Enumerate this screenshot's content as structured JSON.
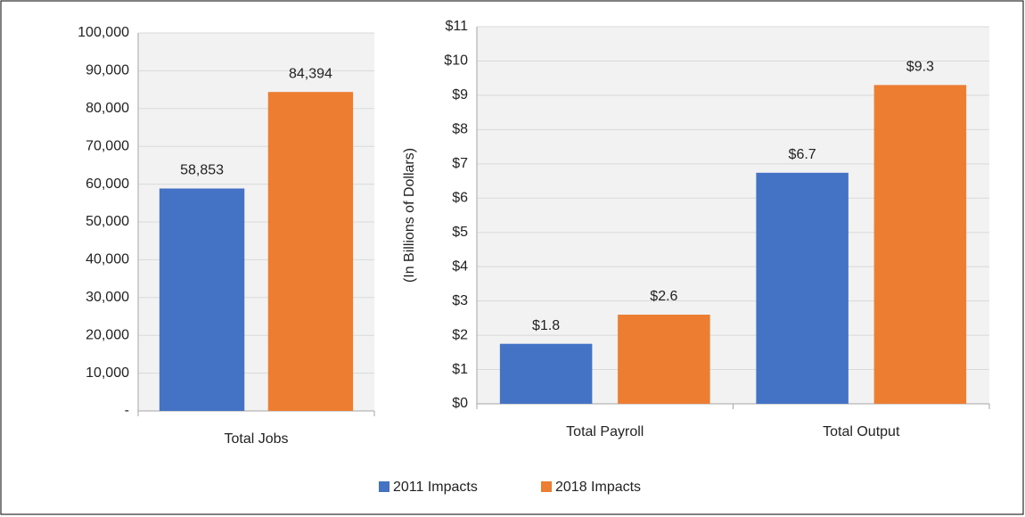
{
  "chart_data": [
    {
      "type": "bar",
      "categories": [
        "Total Jobs"
      ],
      "series": [
        {
          "values": [
            58853
          ],
          "value_labels": [
            "58,853"
          ]
        },
        {
          "values": [
            84394
          ],
          "value_labels": [
            "84,394"
          ]
        }
      ],
      "ylim": [
        0,
        100000
      ],
      "yticks": [
        {
          "value": 0,
          "label": "-"
        },
        {
          "value": 10000,
          "label": "10,000"
        },
        {
          "value": 20000,
          "label": "20,000"
        },
        {
          "value": 30000,
          "label": "30,000"
        },
        {
          "value": 40000,
          "label": "40,000"
        },
        {
          "value": 50000,
          "label": "50,000"
        },
        {
          "value": 60000,
          "label": "60,000"
        },
        {
          "value": 70000,
          "label": "70,000"
        },
        {
          "value": 80000,
          "label": "80,000"
        },
        {
          "value": 90000,
          "label": "90,000"
        },
        {
          "value": 100000,
          "label": "100,000"
        }
      ],
      "grid": true
    },
    {
      "type": "bar",
      "y_label": "(In Billions of Dollars)",
      "categories": [
        "Total Payroll",
        "Total Output"
      ],
      "series": [
        {
          "values": [
            1.75,
            6.74
          ],
          "value_labels": [
            "$1.8",
            "$6.7"
          ]
        },
        {
          "values": [
            2.6,
            9.3
          ],
          "value_labels": [
            "$2.6",
            "$9.3"
          ]
        }
      ],
      "ylim": [
        0,
        11
      ],
      "yticks": [
        {
          "value": 0,
          "label": "$0"
        },
        {
          "value": 1,
          "label": "$1"
        },
        {
          "value": 2,
          "label": "$2"
        },
        {
          "value": 3,
          "label": "$3"
        },
        {
          "value": 4,
          "label": "$4"
        },
        {
          "value": 5,
          "label": "$5"
        },
        {
          "value": 6,
          "label": "$6"
        },
        {
          "value": 7,
          "label": "$7"
        },
        {
          "value": 8,
          "label": "$8"
        },
        {
          "value": 9,
          "label": "$9"
        },
        {
          "value": 10,
          "label": "$10"
        },
        {
          "value": 11,
          "label": "$11"
        }
      ],
      "grid": true
    }
  ],
  "legend": [
    {
      "name": "2011 Impacts",
      "color": "#4472c4"
    },
    {
      "name": "2018 Impacts",
      "color": "#ed7d31"
    }
  ]
}
